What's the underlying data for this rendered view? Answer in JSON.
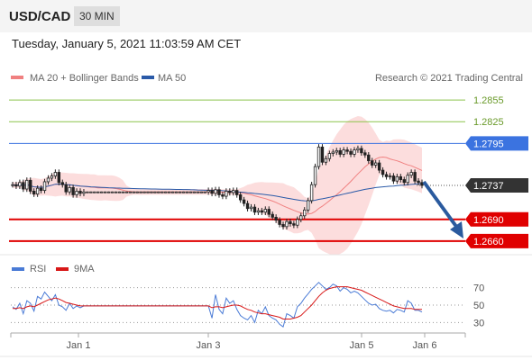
{
  "header": {
    "symbol": "USD/CAD",
    "timeframe": "30 MIN"
  },
  "datetime": "Tuesday, January 5, 2021 11:03:59 AM CET",
  "legend": {
    "ma20_label": "MA 20 + Bollinger Bands",
    "ma50_label": "MA 50",
    "copyright": "Research © 2021 Trading Central",
    "ma20_color": "#f08080",
    "ma50_color": "#2a5aa8"
  },
  "rsi_legend": {
    "rsi_label": "RSI",
    "ma_label": "9MA",
    "rsi_color": "#4a7bd6",
    "ma_color": "#d81818"
  },
  "chart_data": {
    "type": "candlestick",
    "x_ticks": [
      "Jan 1",
      "Jan 3",
      "Jan 5",
      "Jan 6"
    ],
    "price_range": [
      1.264,
      1.2875
    ],
    "levels": [
      {
        "name": "resistance-3",
        "value": 1.2855,
        "label": "1.2855",
        "kind": "target",
        "color": "#8bc34a"
      },
      {
        "name": "resistance-2",
        "value": 1.2825,
        "label": "1.2825",
        "kind": "target",
        "color": "#8bc34a"
      },
      {
        "name": "resistance-1",
        "value": 1.2795,
        "label": "1.2795",
        "kind": "pivot",
        "color": "#3b73e0"
      },
      {
        "name": "last-price",
        "value": 1.2737,
        "label": "1.2737",
        "kind": "last",
        "color": "#333333"
      },
      {
        "name": "support-1",
        "value": 1.269,
        "label": "1.2690",
        "kind": "support",
        "color": "#e00000"
      },
      {
        "name": "support-2",
        "value": 1.266,
        "label": "1.2660",
        "kind": "support",
        "color": "#e00000"
      }
    ],
    "closes": [
      1.2738,
      1.2736,
      1.2741,
      1.2732,
      1.2744,
      1.2729,
      1.2725,
      1.2733,
      1.273,
      1.2742,
      1.2747,
      1.275,
      1.2755,
      1.2741,
      1.2738,
      1.2728,
      1.2734,
      1.2724,
      1.2729,
      1.2726,
      1.2728,
      1.2728,
      1.2728,
      1.2728,
      1.2728,
      1.2728,
      1.2728,
      1.2728,
      1.2728,
      1.2728,
      1.2728,
      1.2728,
      1.2728,
      1.2728,
      1.2728,
      1.2728,
      1.2728,
      1.2728,
      1.2728,
      1.2728,
      1.2728,
      1.2728,
      1.2728,
      1.2728,
      1.2728,
      1.2728,
      1.2728,
      1.2728,
      1.2728,
      1.2728,
      1.2728,
      1.2728,
      1.2728,
      1.2728,
      1.2728,
      1.273,
      1.2726,
      1.2731,
      1.2724,
      1.2722,
      1.2729,
      1.2727,
      1.273,
      1.2724,
      1.2717,
      1.2712,
      1.2705,
      1.2707,
      1.27,
      1.2702,
      1.27,
      1.2704,
      1.2697,
      1.2693,
      1.2689,
      1.2683,
      1.268,
      1.2687,
      1.2684,
      1.2682,
      1.269,
      1.2695,
      1.2703,
      1.2716,
      1.2738,
      1.2763,
      1.279,
      1.2769,
      1.2774,
      1.2781,
      1.2783,
      1.2785,
      1.278,
      1.2786,
      1.2784,
      1.278,
      1.2786,
      1.2788,
      1.2782,
      1.2779,
      1.2771,
      1.2765,
      1.2768,
      1.2758,
      1.2752,
      1.2749,
      1.275,
      1.2743,
      1.2749,
      1.2745,
      1.2741,
      1.2751,
      1.2755,
      1.2743,
      1.2741,
      1.2737
    ],
    "rsi": {
      "y_ticks": [
        30,
        50,
        70
      ],
      "y_range": [
        20,
        82
      ],
      "rsi_values": [
        48,
        45,
        52,
        40,
        55,
        52,
        43,
        60,
        57,
        65,
        60,
        55,
        62,
        50,
        48,
        44,
        52,
        46,
        49,
        47,
        49,
        49,
        49,
        49,
        49,
        49,
        49,
        49,
        49,
        49,
        49,
        49,
        49,
        49,
        49,
        49,
        49,
        49,
        49,
        49,
        49,
        49,
        49,
        49,
        49,
        49,
        49,
        49,
        49,
        49,
        49,
        49,
        49,
        49,
        49,
        49,
        35,
        62,
        45,
        40,
        58,
        52,
        55,
        45,
        38,
        35,
        33,
        38,
        30,
        44,
        40,
        48,
        38,
        35,
        33,
        28,
        25,
        40,
        38,
        35,
        48,
        52,
        58,
        63,
        68,
        72,
        76,
        72,
        68,
        70,
        74,
        72,
        66,
        70,
        68,
        64,
        66,
        64,
        60,
        56,
        52,
        50,
        51,
        46,
        44,
        43,
        44,
        41,
        45,
        44,
        42,
        55,
        52,
        44,
        44,
        42
      ],
      "ma_values": [
        46,
        46,
        47,
        46,
        48,
        49,
        48,
        50,
        52,
        54,
        56,
        57,
        58,
        57,
        55,
        53,
        52,
        51,
        50,
        49,
        49,
        49,
        49,
        49,
        49,
        49,
        49,
        49,
        49,
        49,
        49,
        49,
        49,
        49,
        49,
        49,
        49,
        49,
        49,
        49,
        49,
        49,
        49,
        49,
        49,
        49,
        49,
        49,
        49,
        49,
        49,
        49,
        49,
        49,
        49,
        49,
        47,
        48,
        48,
        47,
        48,
        49,
        50,
        50,
        49,
        47,
        45,
        44,
        42,
        41,
        40,
        40,
        39,
        38,
        37,
        36,
        34,
        34,
        34,
        35,
        36,
        38,
        42,
        46,
        50,
        55,
        60,
        64,
        67,
        69,
        70,
        71,
        71,
        71,
        71,
        70,
        69,
        68,
        67,
        65,
        63,
        61,
        59,
        57,
        55,
        53,
        51,
        49,
        48,
        47,
        46,
        46,
        46,
        45,
        45,
        45
      ]
    }
  }
}
